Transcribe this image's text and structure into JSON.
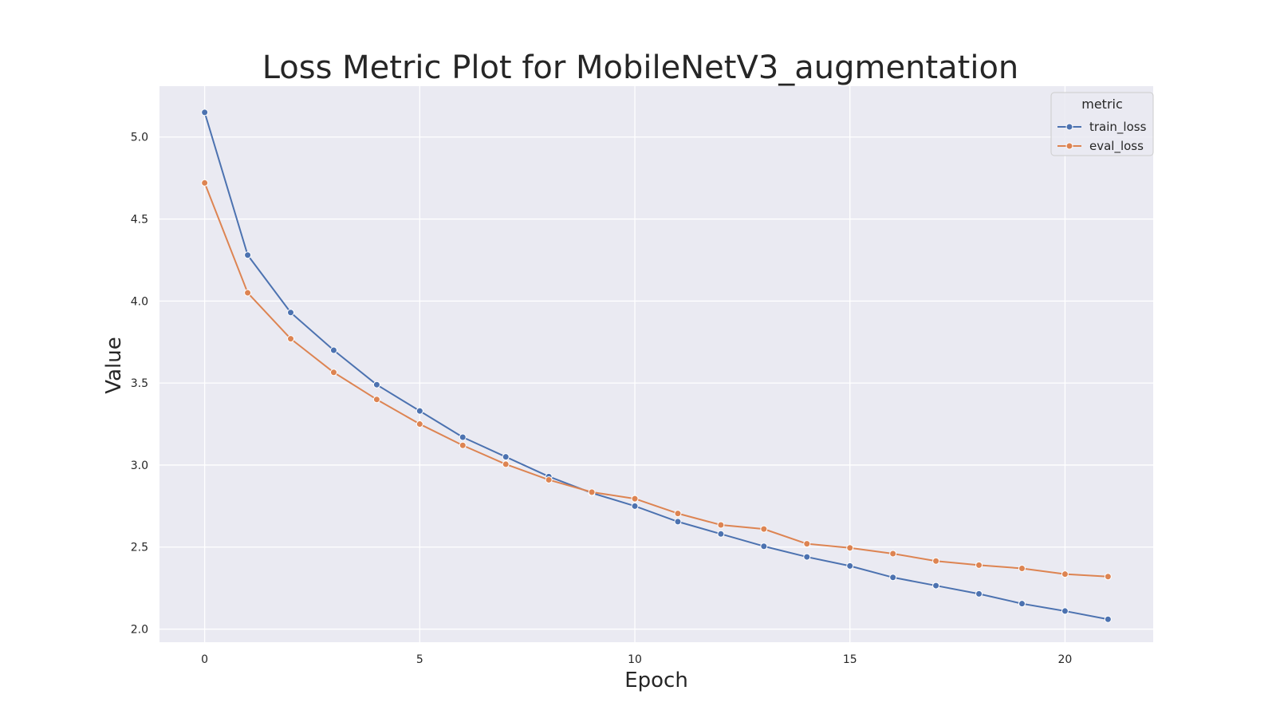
{
  "chart_data": {
    "type": "line",
    "title": "Loss Metric Plot for MobileNetV3_augmentation",
    "xlabel": "Epoch",
    "ylabel": "Value",
    "xlim": [
      -1.05,
      22.05
    ],
    "ylim": [
      1.92,
      5.31
    ],
    "xticks": [
      0,
      5,
      10,
      15,
      20
    ],
    "yticks": [
      2.0,
      2.5,
      3.0,
      3.5,
      4.0,
      4.5,
      5.0
    ],
    "xtick_labels": [
      "0",
      "5",
      "10",
      "15",
      "20"
    ],
    "ytick_labels": [
      "2.0",
      "2.5",
      "3.0",
      "3.5",
      "4.0",
      "4.5",
      "5.0"
    ],
    "grid": true,
    "legend": {
      "title": "metric",
      "placement": "top-right"
    },
    "x": [
      0,
      1,
      2,
      3,
      4,
      5,
      6,
      7,
      8,
      9,
      10,
      11,
      12,
      13,
      14,
      15,
      16,
      17,
      18,
      19,
      20,
      21
    ],
    "series": [
      {
        "name": "train_loss",
        "color": "#4c72b0",
        "values": [
          5.15,
          4.28,
          3.93,
          3.7,
          3.49,
          3.33,
          3.17,
          3.05,
          2.93,
          2.83,
          2.75,
          2.655,
          2.58,
          2.505,
          2.44,
          2.385,
          2.315,
          2.265,
          2.215,
          2.155,
          2.11,
          2.06
        ]
      },
      {
        "name": "eval_loss",
        "color": "#dd8452",
        "values": [
          4.72,
          4.05,
          3.77,
          3.565,
          3.4,
          3.25,
          3.12,
          3.005,
          2.91,
          2.835,
          2.795,
          2.705,
          2.635,
          2.61,
          2.52,
          2.495,
          2.46,
          2.415,
          2.39,
          2.37,
          2.335,
          2.32
        ]
      }
    ],
    "colors": {
      "plot_background": "#eaeaf2",
      "grid": "#ffffff"
    }
  }
}
